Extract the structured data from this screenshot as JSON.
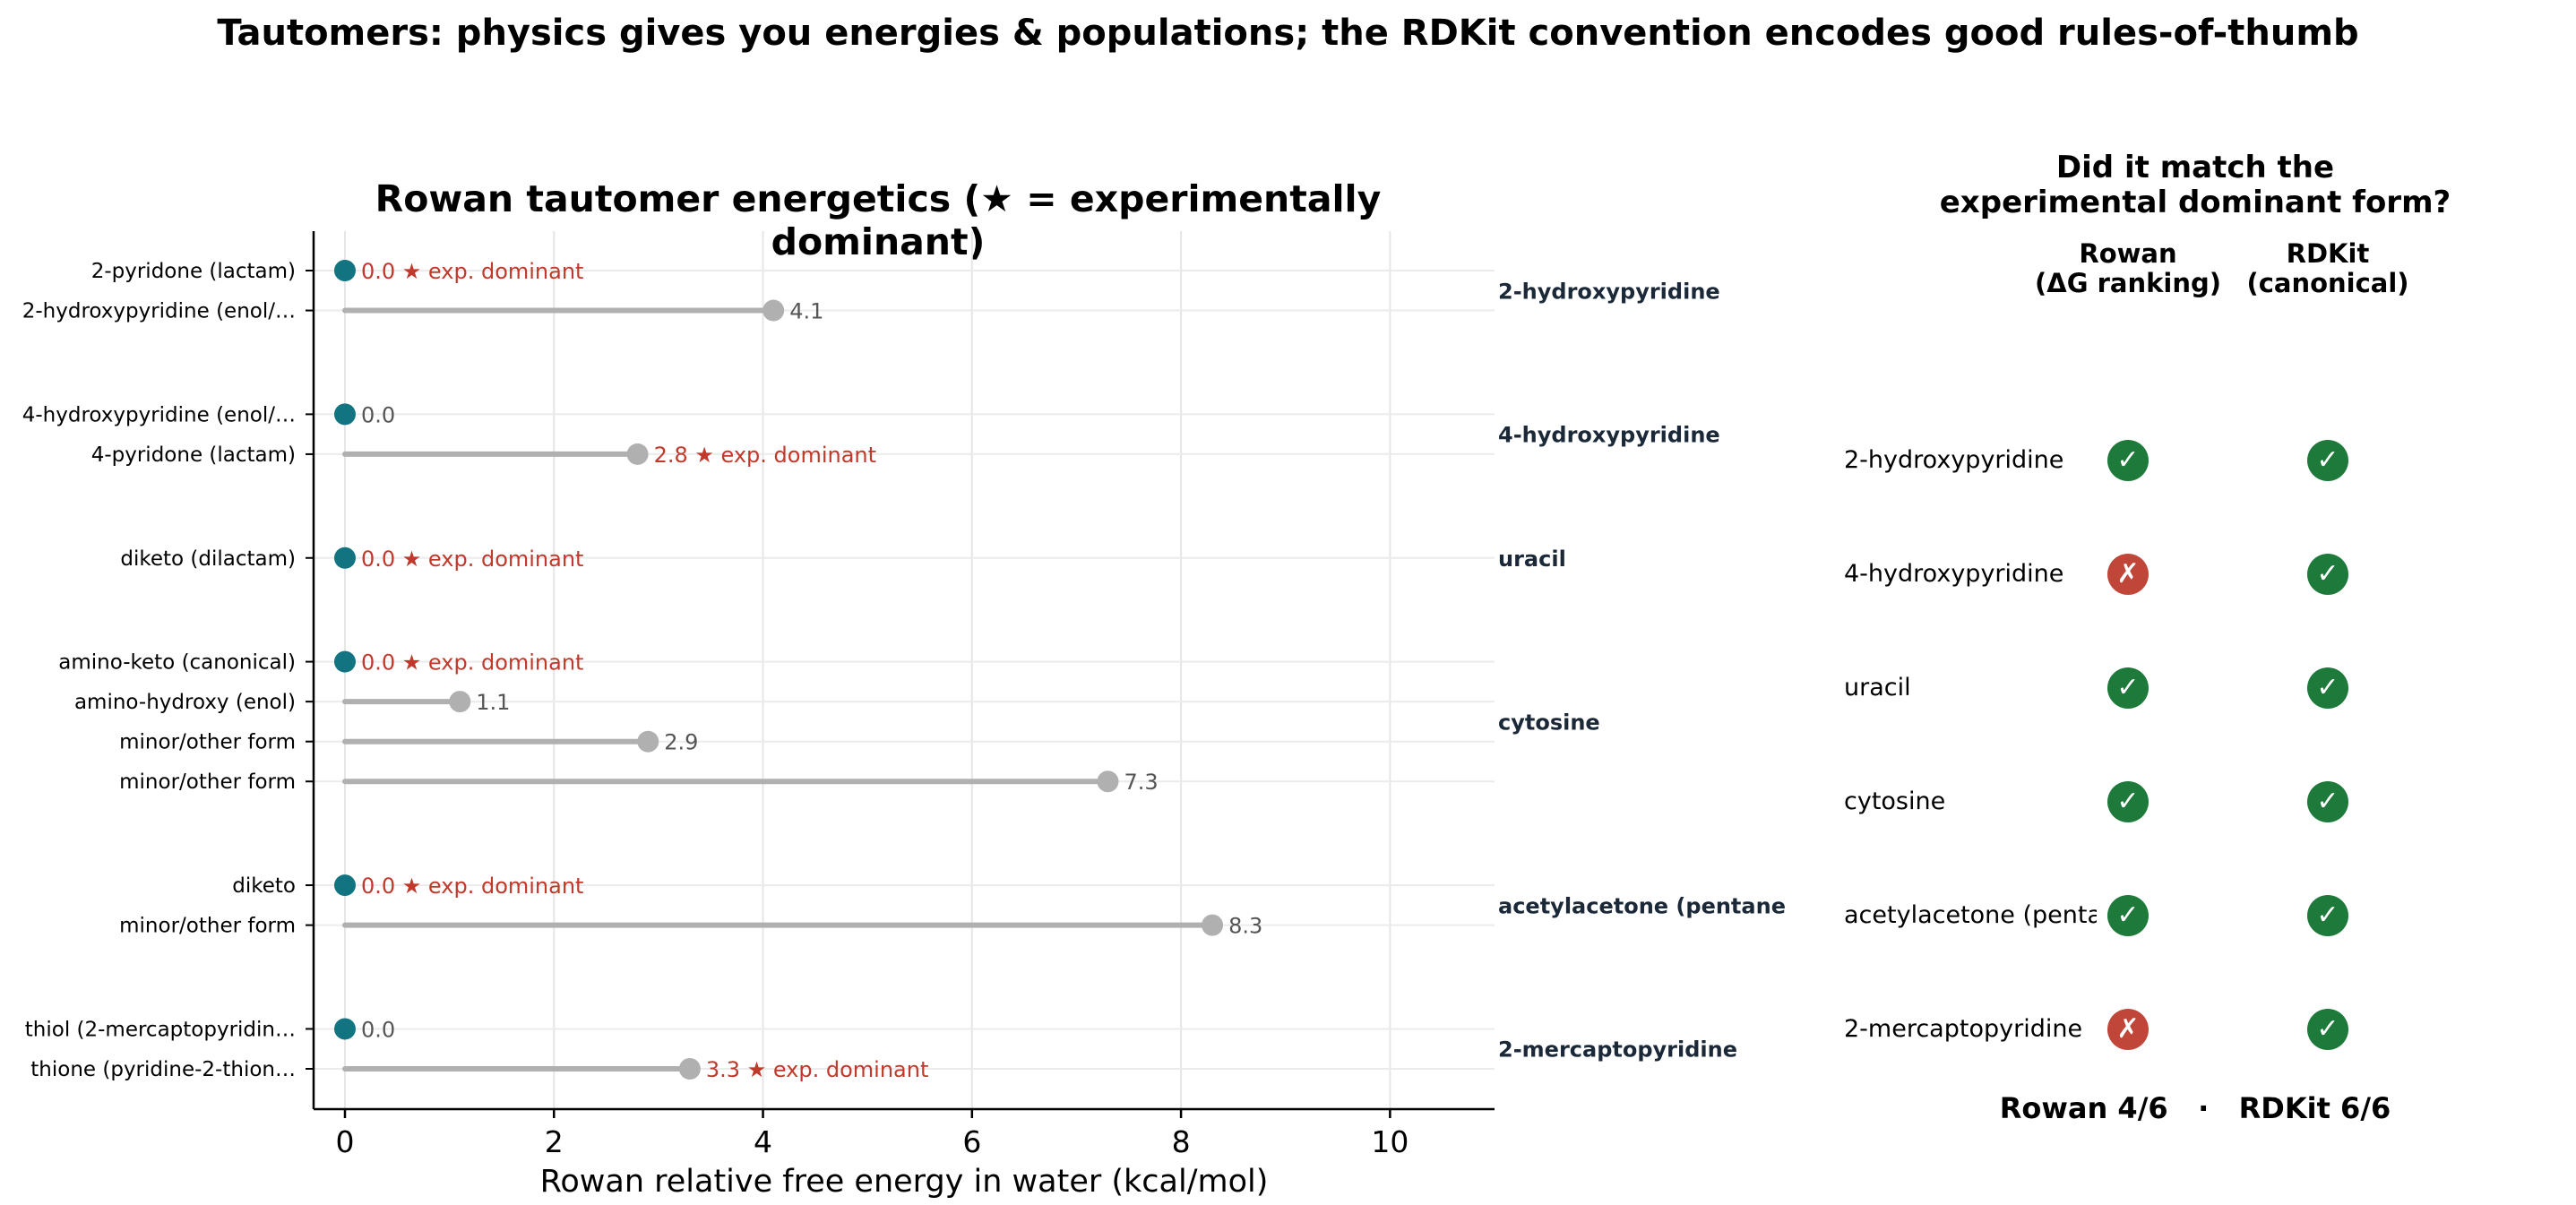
{
  "suptitle": "Tautomers: physics gives you energies & populations; the RDKit convention encodes good rules-of-thumb",
  "chart_data": {
    "type": "lollipop",
    "title": "Rowan tautomer energetics  (★ = experimentally dominant)",
    "xlabel": "Rowan relative free energy in water (kcal/mol)",
    "xlim": [
      -0.3,
      11
    ],
    "xticks": [
      0,
      2,
      4,
      6,
      8,
      10
    ],
    "grid": "x",
    "dominant_marker": "★ exp. dominant",
    "colors": {
      "minimum": "#117480",
      "other": "#b0b0b0",
      "stem": "#b0b0b0",
      "dominant_text": "#c0392b",
      "value_text": "#555555",
      "group_text": "#1b2838"
    },
    "groups": [
      {
        "name": "2-hydroxypyridine",
        "tautomers": [
          {
            "label": "2-pyridone (lactam)",
            "value": 0.0,
            "value_label": "0.0",
            "dominant": true
          },
          {
            "label": "2-hydroxypyridine (enol/…",
            "value": 4.1,
            "value_label": "4.1",
            "dominant": false
          }
        ]
      },
      {
        "name": "4-hydroxypyridine",
        "tautomers": [
          {
            "label": "4-hydroxypyridine (enol/…",
            "value": 0.0,
            "value_label": "0.0",
            "dominant": false
          },
          {
            "label": "4-pyridone (lactam)",
            "value": 2.8,
            "value_label": "2.8",
            "dominant": true
          }
        ]
      },
      {
        "name": "uracil",
        "tautomers": [
          {
            "label": "diketo (dilactam)",
            "value": 0.0,
            "value_label": "0.0",
            "dominant": true
          }
        ]
      },
      {
        "name": "cytosine",
        "tautomers": [
          {
            "label": "amino-keto (canonical)",
            "value": 0.0,
            "value_label": "0.0",
            "dominant": true
          },
          {
            "label": "amino-hydroxy (enol)",
            "value": 1.1,
            "value_label": "1.1",
            "dominant": false
          },
          {
            "label": "minor/other form",
            "value": 2.9,
            "value_label": "2.9",
            "dominant": false
          },
          {
            "label": "minor/other form",
            "value": 7.3,
            "value_label": "7.3",
            "dominant": false
          }
        ]
      },
      {
        "name": "acetylacetone (pentane",
        "tautomers": [
          {
            "label": "diketo",
            "value": 0.0,
            "value_label": "0.0",
            "dominant": true
          },
          {
            "label": "minor/other form",
            "value": 8.3,
            "value_label": "8.3",
            "dominant": false
          }
        ]
      },
      {
        "name": "2-mercaptopyridine",
        "tautomers": [
          {
            "label": "thiol (2-mercaptopyridin…",
            "value": 0.0,
            "value_label": "0.0",
            "dominant": false
          },
          {
            "label": "thione (pyridine-2-thion…",
            "value": 3.3,
            "value_label": "3.3",
            "dominant": true
          }
        ]
      }
    ]
  },
  "match_panel": {
    "title_line1": "Did it match the",
    "title_line2": "experimental dominant form?",
    "col_rowan_line1": "Rowan",
    "col_rowan_line2": "(ΔG ranking)",
    "col_rdkit_line1": "RDKit",
    "col_rdkit_line2": "(canonical)",
    "check_glyph": "✓",
    "cross_glyph": "✗",
    "rows": [
      {
        "label": "2-hydroxypyridine",
        "rowan": true,
        "rdkit": true
      },
      {
        "label": "4-hydroxypyridine",
        "rowan": false,
        "rdkit": true
      },
      {
        "label": "uracil",
        "rowan": true,
        "rdkit": true
      },
      {
        "label": "cytosine",
        "rowan": true,
        "rdkit": true
      },
      {
        "label": "acetylacetone (penta",
        "rowan": true,
        "rdkit": true
      },
      {
        "label": "2-mercaptopyridine",
        "rowan": false,
        "rdkit": true
      }
    ],
    "score": "Rowan 4/6   ·   RDKit 6/6"
  }
}
